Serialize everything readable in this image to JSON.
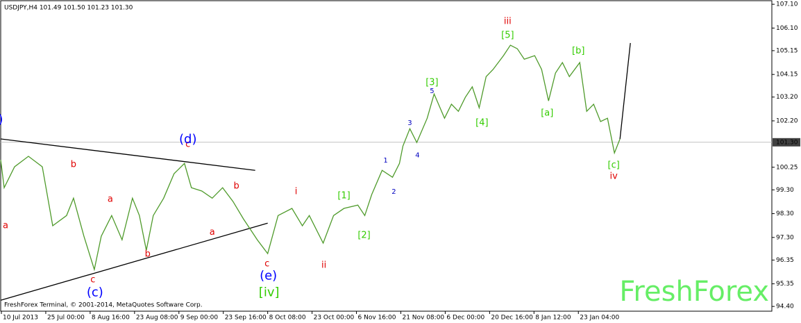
{
  "chart_data": {
    "type": "line",
    "header": "USDJPY,H4  101.49 101.50 101.23 101.30",
    "footer": "FreshForex Terminal, © 2001-2014, MetaQuotes Software Corp.",
    "watermark": "FreshForex",
    "xlim": [
      0,
      1112
    ],
    "ylim": [
      94.2,
      107.25
    ],
    "xticks": [
      {
        "value": 1,
        "label": "10 Jul 2013"
      },
      {
        "value": 65,
        "label": "25 Jul 00:00"
      },
      {
        "value": 129,
        "label": "8 Aug 16:00"
      },
      {
        "value": 193,
        "label": "23 Aug 08:00"
      },
      {
        "value": 257,
        "label": "9 Sep 00:00"
      },
      {
        "value": 321,
        "label": "23 Sep 16:00"
      },
      {
        "value": 385,
        "label": "8 Oct 08:00"
      },
      {
        "value": 449,
        "label": "23 Oct 00:00"
      },
      {
        "value": 513,
        "label": "6 Nov 16:00"
      },
      {
        "value": 577,
        "label": "21 Nov 08:00"
      },
      {
        "value": 641,
        "label": "6 Dec 00:00"
      },
      {
        "value": 705,
        "label": "20 Dec 16:00"
      },
      {
        "value": 769,
        "label": "8 Jan 12:00"
      },
      {
        "value": 833,
        "label": "23 Jan 04:00"
      }
    ],
    "yticks": [
      {
        "value": 107.1,
        "label": "107.10"
      },
      {
        "value": 106.1,
        "label": "106.10"
      },
      {
        "value": 105.15,
        "label": "105.15"
      },
      {
        "value": 104.15,
        "label": "104.15"
      },
      {
        "value": 103.2,
        "label": "103.20"
      },
      {
        "value": 102.2,
        "label": "102.20"
      },
      {
        "value": 100.25,
        "label": "100.25"
      },
      {
        "value": 99.3,
        "label": "99.30"
      },
      {
        "value": 98.3,
        "label": "98.30"
      },
      {
        "value": 97.3,
        "label": "97.30"
      },
      {
        "value": 96.35,
        "label": "96.35"
      },
      {
        "value": 95.35,
        "label": "95.35"
      },
      {
        "value": 94.4,
        "label": "94.40"
      }
    ],
    "last_price": {
      "value": 101.3,
      "label": "101.30"
    },
    "series": [
      {
        "color": "#4e9a2a",
        "x": [
          0,
          5,
          20,
          40,
          60,
          75,
          95,
          105,
          120,
          135,
          145,
          160,
          175,
          190,
          200,
          210,
          220,
          235,
          250,
          265,
          275,
          290,
          305,
          320,
          335,
          350,
          360,
          370,
          385,
          400,
          420,
          435,
          445,
          465,
          480,
          495,
          515,
          525,
          535,
          550,
          565,
          575,
          580,
          590,
          600,
          615,
          625,
          640,
          650,
          660,
          670,
          680,
          690,
          700,
          710,
          725,
          735,
          745,
          755,
          770,
          780,
          790,
          800,
          810,
          820,
          835,
          845,
          855,
          865,
          875,
          885,
          893
        ],
        "values": [
          100.56,
          99.39,
          100.27,
          100.71,
          100.27,
          97.79,
          98.22,
          98.95,
          97.35,
          95.95,
          97.35,
          98.22,
          97.2,
          98.95,
          98.22,
          96.76,
          98.22,
          98.95,
          99.98,
          100.41,
          99.39,
          99.25,
          98.95,
          99.39,
          98.81,
          98.08,
          97.64,
          97.2,
          96.62,
          98.22,
          98.52,
          97.79,
          98.22,
          97.06,
          98.22,
          98.52,
          98.66,
          98.22,
          99.1,
          100.12,
          99.83,
          100.41,
          101.14,
          101.87,
          101.29,
          102.31,
          103.33,
          102.31,
          102.9,
          102.6,
          103.19,
          103.63,
          102.75,
          104.06,
          104.36,
          104.94,
          105.38,
          105.23,
          104.79,
          104.94,
          104.36,
          103.04,
          104.21,
          104.65,
          104.06,
          104.65,
          102.6,
          102.9,
          102.17,
          102.31,
          100.85,
          101.44
        ]
      },
      {
        "color": "#000000",
        "x": [
          893,
          908
        ],
        "values": [
          101.44,
          105.47
        ]
      }
    ],
    "trendlines": [
      {
        "x": [
          0,
          367
        ],
        "values": [
          101.44,
          100.12
        ]
      },
      {
        "x": [
          0,
          385
        ],
        "values": [
          94.66,
          97.9
        ]
      }
    ],
    "annotations": [
      {
        "text": ")",
        "x": 0,
        "y": 102.25,
        "color": "#0000ff",
        "size": "large"
      },
      {
        "text": "a",
        "x": 7,
        "y": 97.79,
        "color": "#e00000",
        "size": "medium"
      },
      {
        "text": "b",
        "x": 105,
        "y": 100.36,
        "color": "#e00000",
        "size": "medium"
      },
      {
        "text": "a",
        "x": 158,
        "y": 98.9,
        "color": "#e00000",
        "size": "medium"
      },
      {
        "text": "b",
        "x": 212,
        "y": 96.59,
        "color": "#e00000",
        "size": "medium"
      },
      {
        "text": "c",
        "x": 270,
        "y": 101.2,
        "color": "#e00000",
        "size": "medium"
      },
      {
        "text": "a",
        "x": 305,
        "y": 97.52,
        "color": "#e00000",
        "size": "medium"
      },
      {
        "text": "b",
        "x": 340,
        "y": 99.45,
        "color": "#e00000",
        "size": "medium"
      },
      {
        "text": "c",
        "x": 133,
        "y": 95.51,
        "color": "#e00000",
        "size": "medium"
      },
      {
        "text": "c",
        "x": 384,
        "y": 96.18,
        "color": "#e00000",
        "size": "medium"
      },
      {
        "text": "i",
        "x": 426,
        "y": 99.22,
        "color": "#e00000",
        "size": "medium"
      },
      {
        "text": "ii",
        "x": 466,
        "y": 96.12,
        "color": "#e00000",
        "size": "medium"
      },
      {
        "text": "iii",
        "x": 731,
        "y": 106.37,
        "color": "#e00000",
        "size": "medium"
      },
      {
        "text": "iv",
        "x": 884,
        "y": 99.86,
        "color": "#e00000",
        "size": "medium"
      },
      {
        "text": "(d)",
        "x": 270,
        "y": 101.41,
        "color": "#0000ff",
        "size": "large"
      },
      {
        "text": "(c)",
        "x": 136,
        "y": 94.98,
        "color": "#0000ff",
        "size": "large"
      },
      {
        "text": "(e)",
        "x": 386,
        "y": 95.68,
        "color": "#0000ff",
        "size": "large"
      },
      {
        "text": "1",
        "x": 555,
        "y": 100.53,
        "color": "#0000c0",
        "size": "small"
      },
      {
        "text": "2",
        "x": 567,
        "y": 99.22,
        "color": "#0000c0",
        "size": "small"
      },
      {
        "text": "3",
        "x": 590,
        "y": 102.11,
        "color": "#0000c0",
        "size": "small"
      },
      {
        "text": "4",
        "x": 601,
        "y": 100.76,
        "color": "#0000c0",
        "size": "small"
      },
      {
        "text": "5",
        "x": 622,
        "y": 103.45,
        "color": "#0000c0",
        "size": "small"
      },
      {
        "text": "[iv]",
        "x": 387,
        "y": 94.98,
        "color": "#33cc00",
        "size": "large"
      },
      {
        "text": "[1]",
        "x": 495,
        "y": 99.04,
        "color": "#33cc00",
        "size": "medium"
      },
      {
        "text": "[2]",
        "x": 524,
        "y": 97.38,
        "color": "#33cc00",
        "size": "medium"
      },
      {
        "text": "[3]",
        "x": 622,
        "y": 103.8,
        "color": "#33cc00",
        "size": "medium"
      },
      {
        "text": "[4]",
        "x": 694,
        "y": 102.11,
        "color": "#33cc00",
        "size": "medium"
      },
      {
        "text": "[5]",
        "x": 731,
        "y": 105.79,
        "color": "#33cc00",
        "size": "medium"
      },
      {
        "text": "[a]",
        "x": 788,
        "y": 102.52,
        "color": "#33cc00",
        "size": "medium"
      },
      {
        "text": "[b]",
        "x": 833,
        "y": 105.14,
        "color": "#33cc00",
        "size": "medium"
      },
      {
        "text": "[c]",
        "x": 884,
        "y": 100.33,
        "color": "#33cc00",
        "size": "medium"
      }
    ]
  }
}
